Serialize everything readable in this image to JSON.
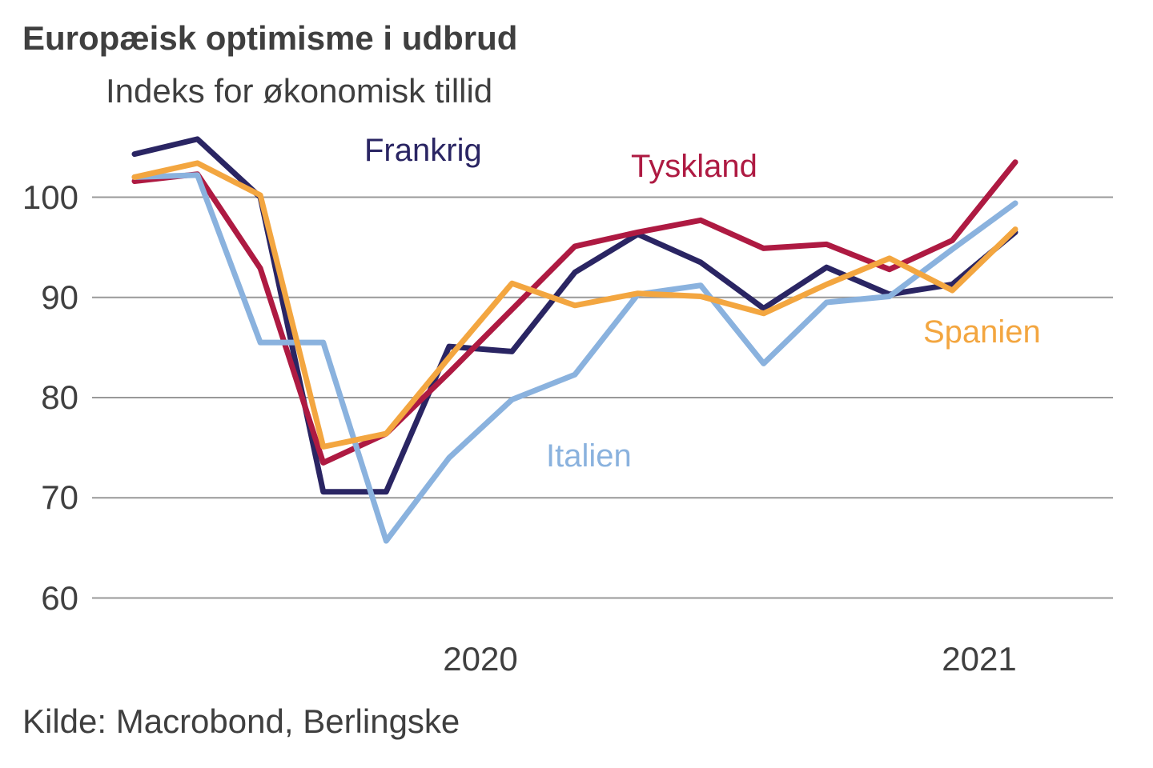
{
  "chart_data": {
    "type": "line",
    "title": "Europæisk optimisme i udbrud",
    "subtitle": "Indeks for økonomisk tillid",
    "source": "Kilde: Macrobond, Berlingske",
    "grid": "horizontal",
    "n_points": 15,
    "x_axis": {
      "tick_labels": [
        "2020",
        "2021"
      ]
    },
    "y_axis": {
      "ticks": [
        100,
        90,
        80,
        70,
        60
      ],
      "range_shown": [
        58,
        107
      ]
    },
    "series": [
      {
        "name": "Frankrig",
        "color": "#2a2563",
        "values": [
          104.3,
          105.8,
          100.0,
          70.6,
          70.6,
          85.1,
          84.6,
          92.5,
          96.3,
          93.5,
          88.9,
          93.0,
          90.3,
          91.3,
          96.5
        ]
      },
      {
        "name": "Tyskland",
        "color": "#ae1a42",
        "values": [
          101.6,
          102.3,
          92.9,
          73.5,
          76.4,
          82.5,
          88.8,
          95.1,
          96.5,
          97.7,
          94.9,
          95.3,
          92.8,
          95.7,
          103.5
        ]
      },
      {
        "name": "Italien",
        "color": "#8ab2de",
        "values": [
          102.0,
          102.2,
          85.5,
          85.5,
          65.7,
          74.0,
          79.8,
          82.3,
          90.3,
          91.2,
          83.4,
          89.5,
          90.1,
          94.8,
          99.4
        ]
      },
      {
        "name": "Spanien",
        "color": "#f3a640",
        "values": [
          102.0,
          103.4,
          100.2,
          75.1,
          76.4,
          84.0,
          91.4,
          89.2,
          90.4,
          90.1,
          88.4,
          91.3,
          93.9,
          90.7,
          96.8
        ]
      }
    ]
  }
}
